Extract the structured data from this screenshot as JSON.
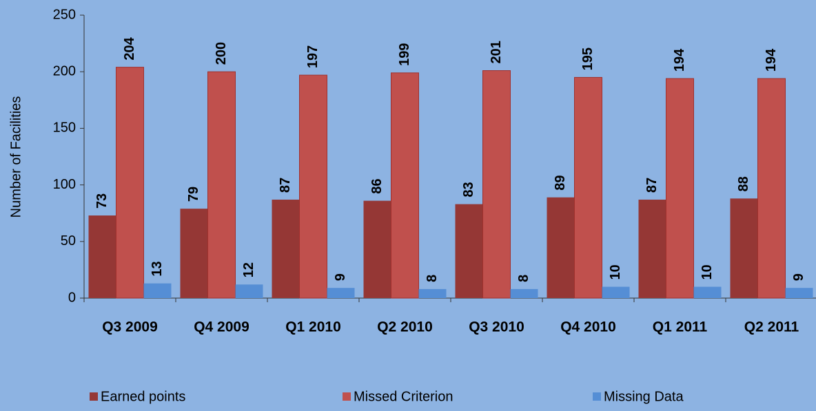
{
  "chart_data": {
    "type": "bar",
    "y_label": "Number of Facilities",
    "categories": [
      "Q3 2009",
      "Q4 2009",
      "Q1 2010",
      "Q2 2010",
      "Q3 2010",
      "Q4 2010",
      "Q1 2011",
      "Q2 2011"
    ],
    "series": [
      {
        "name": "Earned points",
        "color": "#953735",
        "values": [
          73,
          79,
          87,
          86,
          83,
          89,
          87,
          88
        ]
      },
      {
        "name": "Missed Criterion",
        "color": "#c0504d",
        "values": [
          204,
          200,
          197,
          199,
          201,
          195,
          194,
          194
        ]
      },
      {
        "name": "Missing Data",
        "color": "#558ed5",
        "values": [
          13,
          12,
          9,
          8,
          8,
          10,
          10,
          9
        ]
      }
    ],
    "ylim": [
      0,
      250
    ],
    "yticks": [
      0,
      50,
      100,
      150,
      200,
      250
    ],
    "grid": false,
    "legend": "bottom"
  }
}
